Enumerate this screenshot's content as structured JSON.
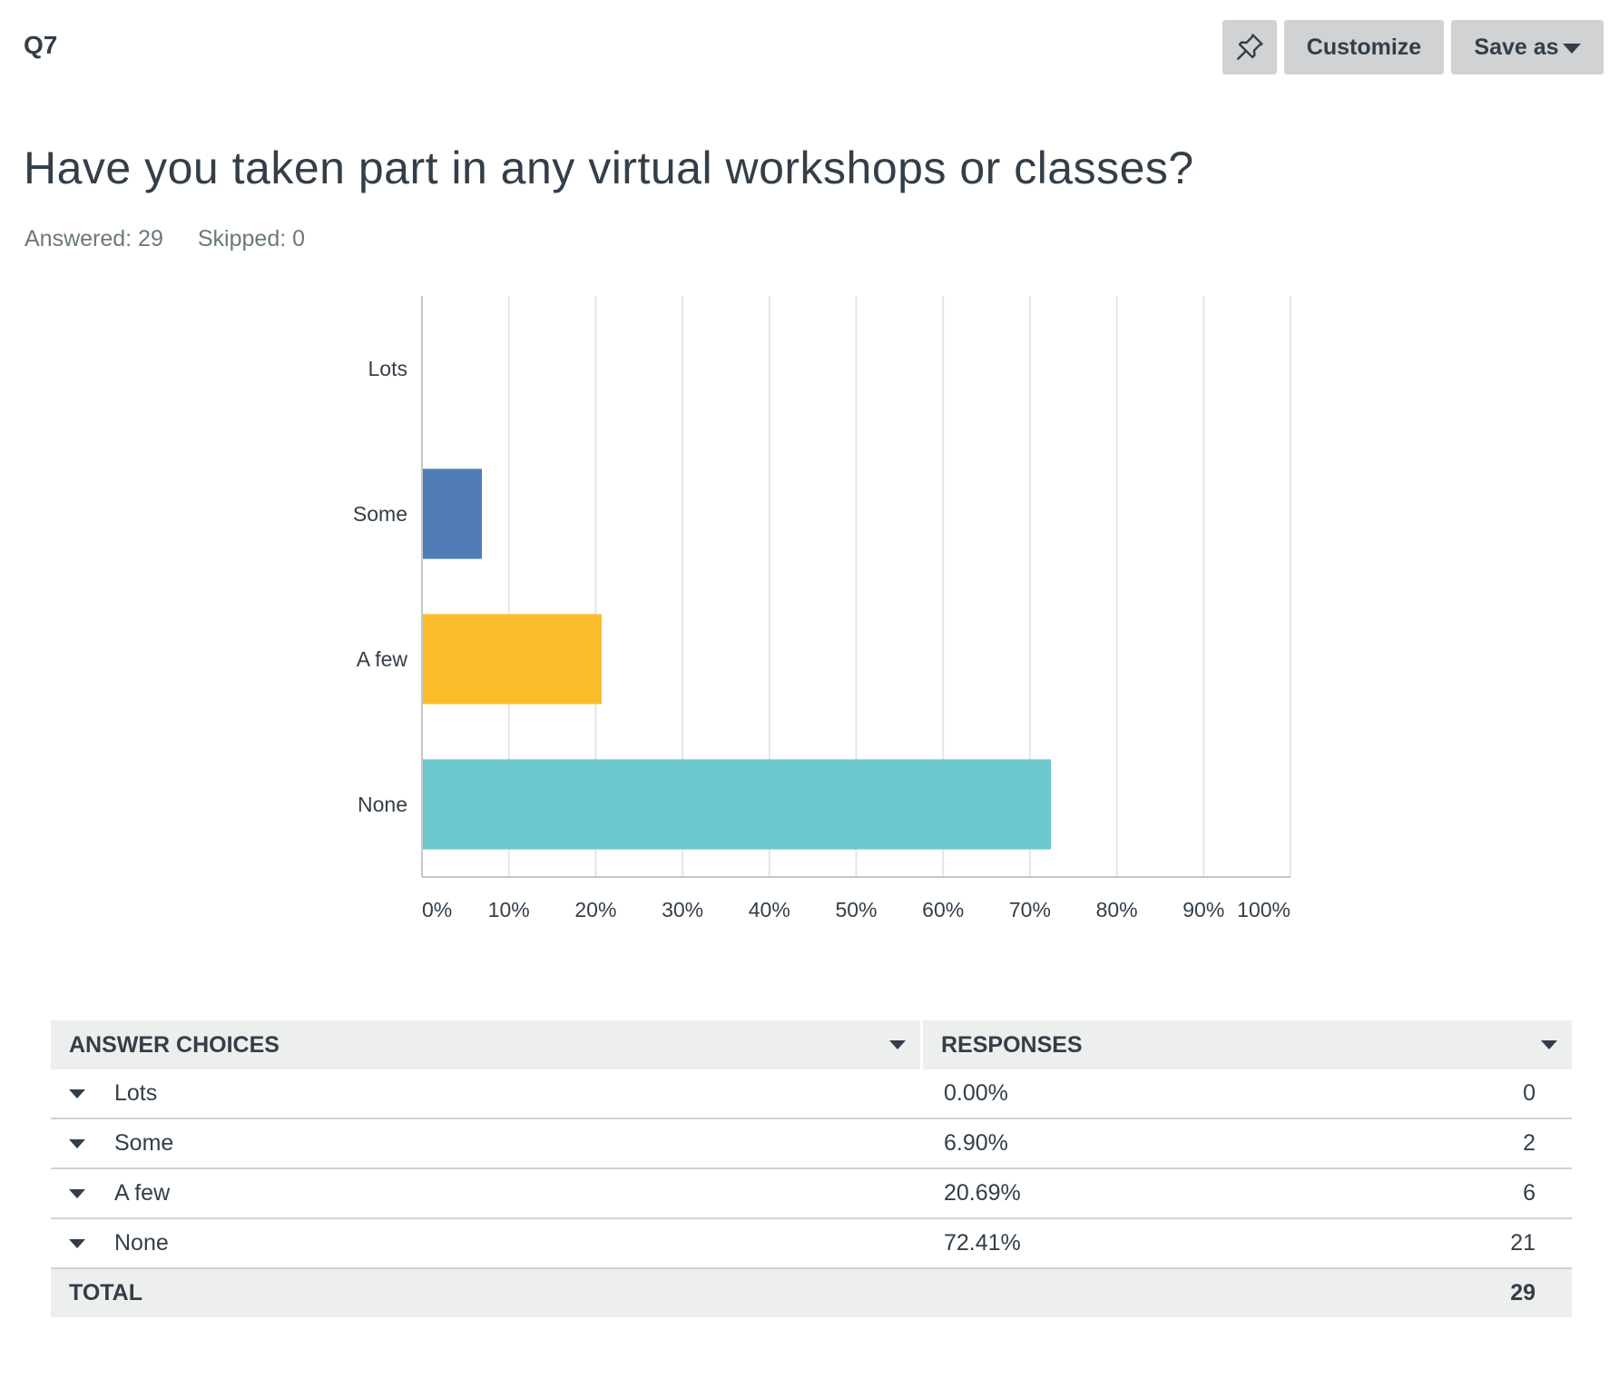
{
  "question": {
    "number": "Q7",
    "title": "Have you taken part in any virtual workshops or classes?",
    "answered_label": "Answered: 29",
    "skipped_label": "Skipped: 0"
  },
  "toolbar": {
    "pin_icon": "pin-icon",
    "customize_label": "Customize",
    "save_as_label": "Save as"
  },
  "chart_data": {
    "type": "bar",
    "orientation": "horizontal",
    "categories": [
      "Lots",
      "Some",
      "A few",
      "None"
    ],
    "values": [
      0,
      6.9,
      20.69,
      72.41
    ],
    "colors": [
      "#3b7dd8",
      "#507cb6",
      "#f9be29",
      "#6bc8cd"
    ],
    "xlim": [
      0,
      100
    ],
    "x_ticks": [
      "0%",
      "10%",
      "20%",
      "30%",
      "40%",
      "50%",
      "60%",
      "70%",
      "80%",
      "90%",
      "100%"
    ],
    "grid": true
  },
  "table": {
    "header_choice": "ANSWER CHOICES",
    "header_responses": "RESPONSES",
    "rows": [
      {
        "choice": "Lots",
        "percent": "0.00%",
        "count": "0"
      },
      {
        "choice": "Some",
        "percent": "6.90%",
        "count": "2"
      },
      {
        "choice": "A few",
        "percent": "20.69%",
        "count": "6"
      },
      {
        "choice": "None",
        "percent": "72.41%",
        "count": "21"
      }
    ],
    "total_label": "TOTAL",
    "total_value": "29"
  }
}
